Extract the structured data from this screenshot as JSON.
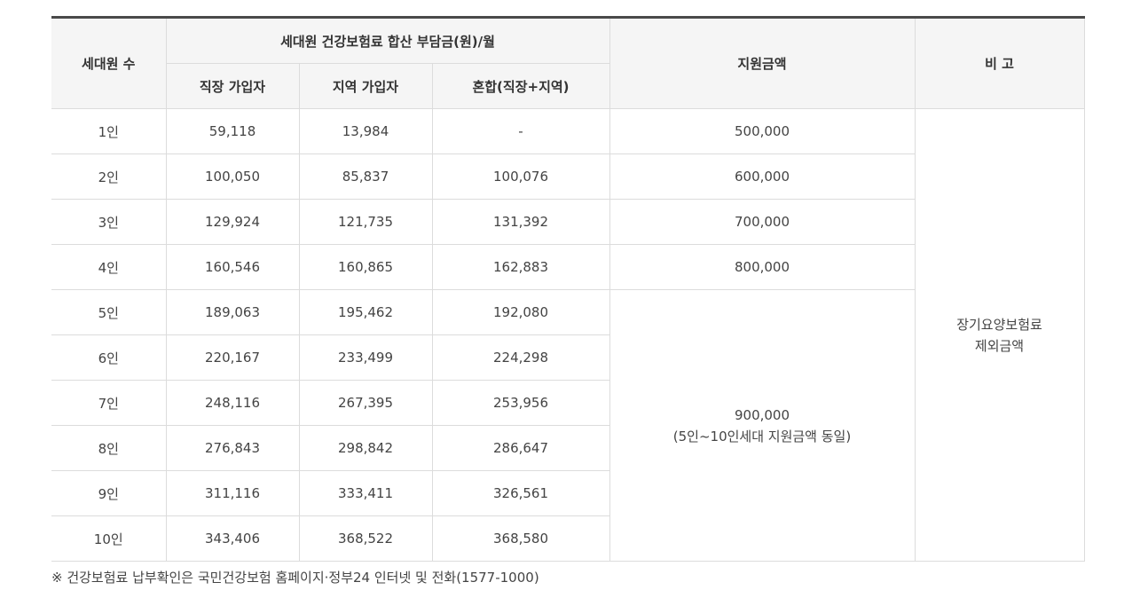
{
  "header": {
    "col_household": "세대원 수",
    "col_premium_group": "세대원 건강보험료 합산 부담금(원)/월",
    "col_employee": "직장 가입자",
    "col_regional": "지역 가입자",
    "col_mixed": "혼합(직장+지역)",
    "col_support": "지원금액",
    "col_note": "비 고"
  },
  "rows": [
    {
      "household": "1인",
      "employee": "59,118",
      "regional": "13,984",
      "mixed": "-"
    },
    {
      "household": "2인",
      "employee": "100,050",
      "regional": "85,837",
      "mixed": "100,076"
    },
    {
      "household": "3인",
      "employee": "129,924",
      "regional": "121,735",
      "mixed": "131,392"
    },
    {
      "household": "4인",
      "employee": "160,546",
      "regional": "160,865",
      "mixed": "162,883"
    },
    {
      "household": "5인",
      "employee": "189,063",
      "regional": "195,462",
      "mixed": "192,080"
    },
    {
      "household": "6인",
      "employee": "220,167",
      "regional": "233,499",
      "mixed": "224,298"
    },
    {
      "household": "7인",
      "employee": "248,116",
      "regional": "267,395",
      "mixed": "253,956"
    },
    {
      "household": "8인",
      "employee": "276,843",
      "regional": "298,842",
      "mixed": "286,647"
    },
    {
      "household": "9인",
      "employee": "311,116",
      "regional": "333,411",
      "mixed": "326,561"
    },
    {
      "household": "10인",
      "employee": "343,406",
      "regional": "368,522",
      "mixed": "368,580"
    }
  ],
  "support": {
    "r1": "500,000",
    "r2": "600,000",
    "r3": "700,000",
    "r4": "800,000",
    "merged_amount": "900,000",
    "merged_desc": "(5인~10인세대 지원금액 동일)"
  },
  "note": {
    "line1": "장기요양보험료",
    "line2": "제외금액"
  },
  "footnote": "※ 건강보험료 납부확인은 국민건강보험 홈페이지·정부24 인터넷 및 전화(1577-1000)"
}
